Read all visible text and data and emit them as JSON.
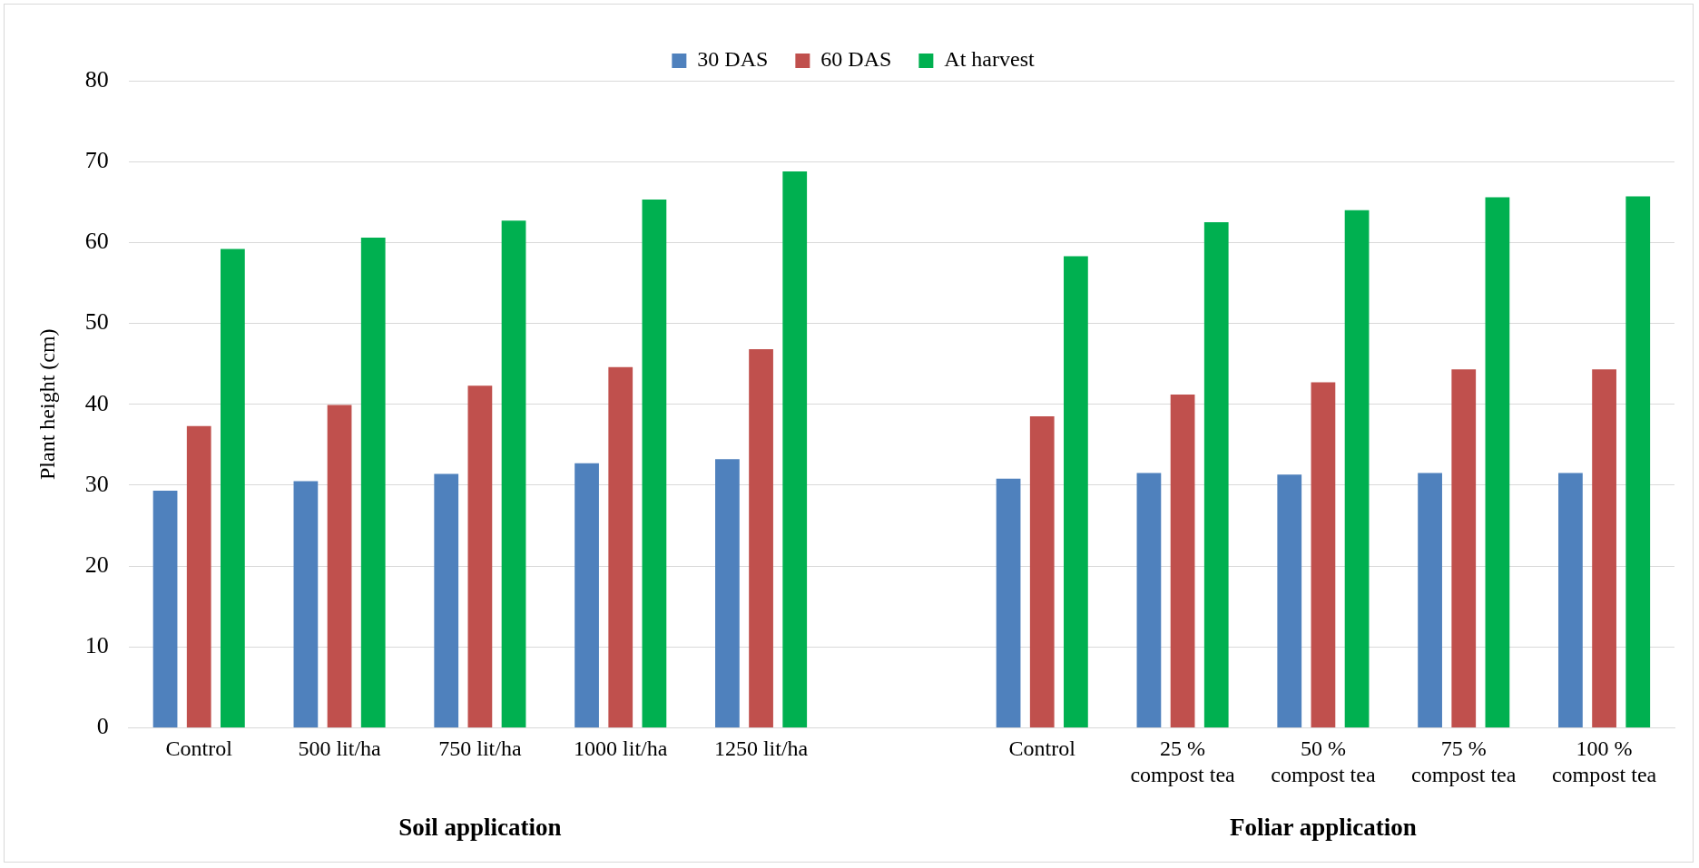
{
  "chart_data": {
    "type": "bar",
    "ylabel": "Plant height (cm)",
    "categories": [
      "Control",
      "500 lit/ha",
      "750 lit/ha",
      "1000 lit/ha",
      "1250 lit/ha",
      null,
      "Control",
      "25 %\ncompost tea",
      "50 %\ncompost tea",
      "75 %\ncompost tea",
      "100 %\ncompost tea"
    ],
    "series": [
      {
        "name": "30 DAS",
        "color": "#4f81bd",
        "values": [
          29.3,
          30.5,
          31.4,
          32.7,
          33.2,
          null,
          30.8,
          31.5,
          31.3,
          31.5,
          31.5
        ]
      },
      {
        "name": "60 DAS",
        "color": "#c0504d",
        "values": [
          37.3,
          39.9,
          42.3,
          44.6,
          46.8,
          null,
          38.5,
          41.2,
          42.7,
          44.3,
          44.3
        ]
      },
      {
        "name": "At harvest",
        "color": "#00b050",
        "values": [
          59.2,
          60.6,
          62.7,
          65.3,
          68.8,
          null,
          58.3,
          62.5,
          64.0,
          65.6,
          65.7
        ]
      }
    ],
    "ylim": [
      0,
      80
    ],
    "yticks": [
      0,
      10,
      20,
      30,
      40,
      50,
      60,
      70,
      80
    ],
    "grid": "y",
    "legend": "top",
    "annotations": [
      "Soil application",
      "Foliar application"
    ]
  }
}
